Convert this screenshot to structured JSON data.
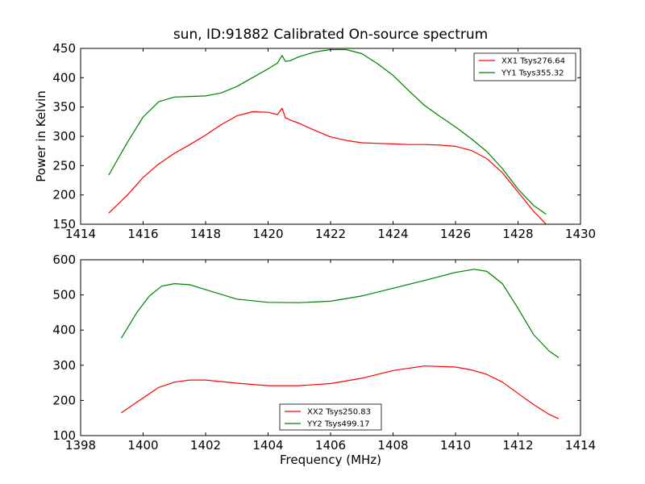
{
  "chart_data": [
    {
      "type": "line",
      "title": "sun, ID:91882 Calibrated On-source spectrum",
      "xlabel": "",
      "ylabel": "Power in Kelvin",
      "xlim": [
        1414,
        1430
      ],
      "ylim": [
        150,
        450
      ],
      "xticks": [
        1414,
        1416,
        1418,
        1420,
        1422,
        1424,
        1426,
        1428,
        1430
      ],
      "yticks": [
        150,
        200,
        250,
        300,
        350,
        400,
        450
      ],
      "legend_position": "top-right",
      "series": [
        {
          "name": "XX1 Tsys276.64",
          "color": "#ff0000",
          "x": [
            1414.9,
            1415.5,
            1416,
            1416.5,
            1417,
            1417.5,
            1418,
            1418.5,
            1419,
            1419.5,
            1420,
            1420.3,
            1420.45,
            1420.55,
            1420.7,
            1421,
            1421.5,
            1422,
            1422.5,
            1423,
            1423.5,
            1424,
            1424.5,
            1425,
            1425.5,
            1426,
            1426.5,
            1427,
            1427.5,
            1428,
            1428.5,
            1428.9
          ],
          "y": [
            169,
            200,
            230,
            253,
            271,
            286,
            302,
            320,
            335,
            342,
            341,
            337,
            348,
            332,
            328,
            322,
            310,
            299,
            293,
            289,
            288,
            287,
            286,
            286,
            285,
            283,
            276,
            262,
            238,
            205,
            172,
            150
          ]
        },
        {
          "name": "YY1 Tsys355.32",
          "color": "#008000",
          "x": [
            1414.9,
            1415.5,
            1416,
            1416.5,
            1417,
            1417.5,
            1418,
            1418.5,
            1419,
            1419.5,
            1420,
            1420.3,
            1420.45,
            1420.55,
            1420.7,
            1421,
            1421.5,
            1422,
            1422.5,
            1423,
            1423.5,
            1424,
            1424.5,
            1425,
            1425.5,
            1426,
            1426.5,
            1427,
            1427.5,
            1428,
            1428.5,
            1428.9
          ],
          "y": [
            234,
            290,
            333,
            359,
            367,
            368,
            369,
            374,
            385,
            400,
            415,
            425,
            438,
            428,
            429,
            436,
            444,
            448,
            448,
            441,
            424,
            404,
            378,
            353,
            334,
            316,
            296,
            274,
            245,
            210,
            182,
            167
          ]
        }
      ]
    },
    {
      "type": "line",
      "title": "",
      "xlabel": "Frequency (MHz)",
      "ylabel": "",
      "xlim": [
        1398,
        1414
      ],
      "ylim": [
        100,
        600
      ],
      "xticks": [
        1398,
        1400,
        1402,
        1404,
        1406,
        1408,
        1410,
        1412,
        1414
      ],
      "yticks": [
        100,
        200,
        300,
        400,
        500,
        600
      ],
      "legend_position": "bottom-center",
      "series": [
        {
          "name": "XX2 Tsys250.83",
          "color": "#ff0000",
          "x": [
            1399.3,
            1400,
            1400.5,
            1401,
            1401.5,
            1402,
            1403,
            1404,
            1405,
            1406,
            1407,
            1408,
            1409,
            1410,
            1410.5,
            1411,
            1411.5,
            1412,
            1412.5,
            1413,
            1413.3
          ],
          "y": [
            165,
            207,
            237,
            252,
            258,
            258,
            249,
            242,
            242,
            248,
            263,
            285,
            298,
            295,
            287,
            274,
            252,
            220,
            188,
            160,
            148
          ]
        },
        {
          "name": "YY2 Tsys499.17",
          "color": "#008000",
          "x": [
            1399.3,
            1399.8,
            1400.2,
            1400.6,
            1401,
            1401.5,
            1402,
            1403,
            1404,
            1405,
            1406,
            1407,
            1408,
            1409,
            1410,
            1410.6,
            1411,
            1411.5,
            1412,
            1412.5,
            1413,
            1413.3
          ],
          "y": [
            377,
            450,
            497,
            525,
            532,
            529,
            515,
            488,
            479,
            478,
            482,
            497,
            519,
            541,
            564,
            573,
            567,
            532,
            462,
            387,
            340,
            322
          ]
        }
      ]
    }
  ]
}
